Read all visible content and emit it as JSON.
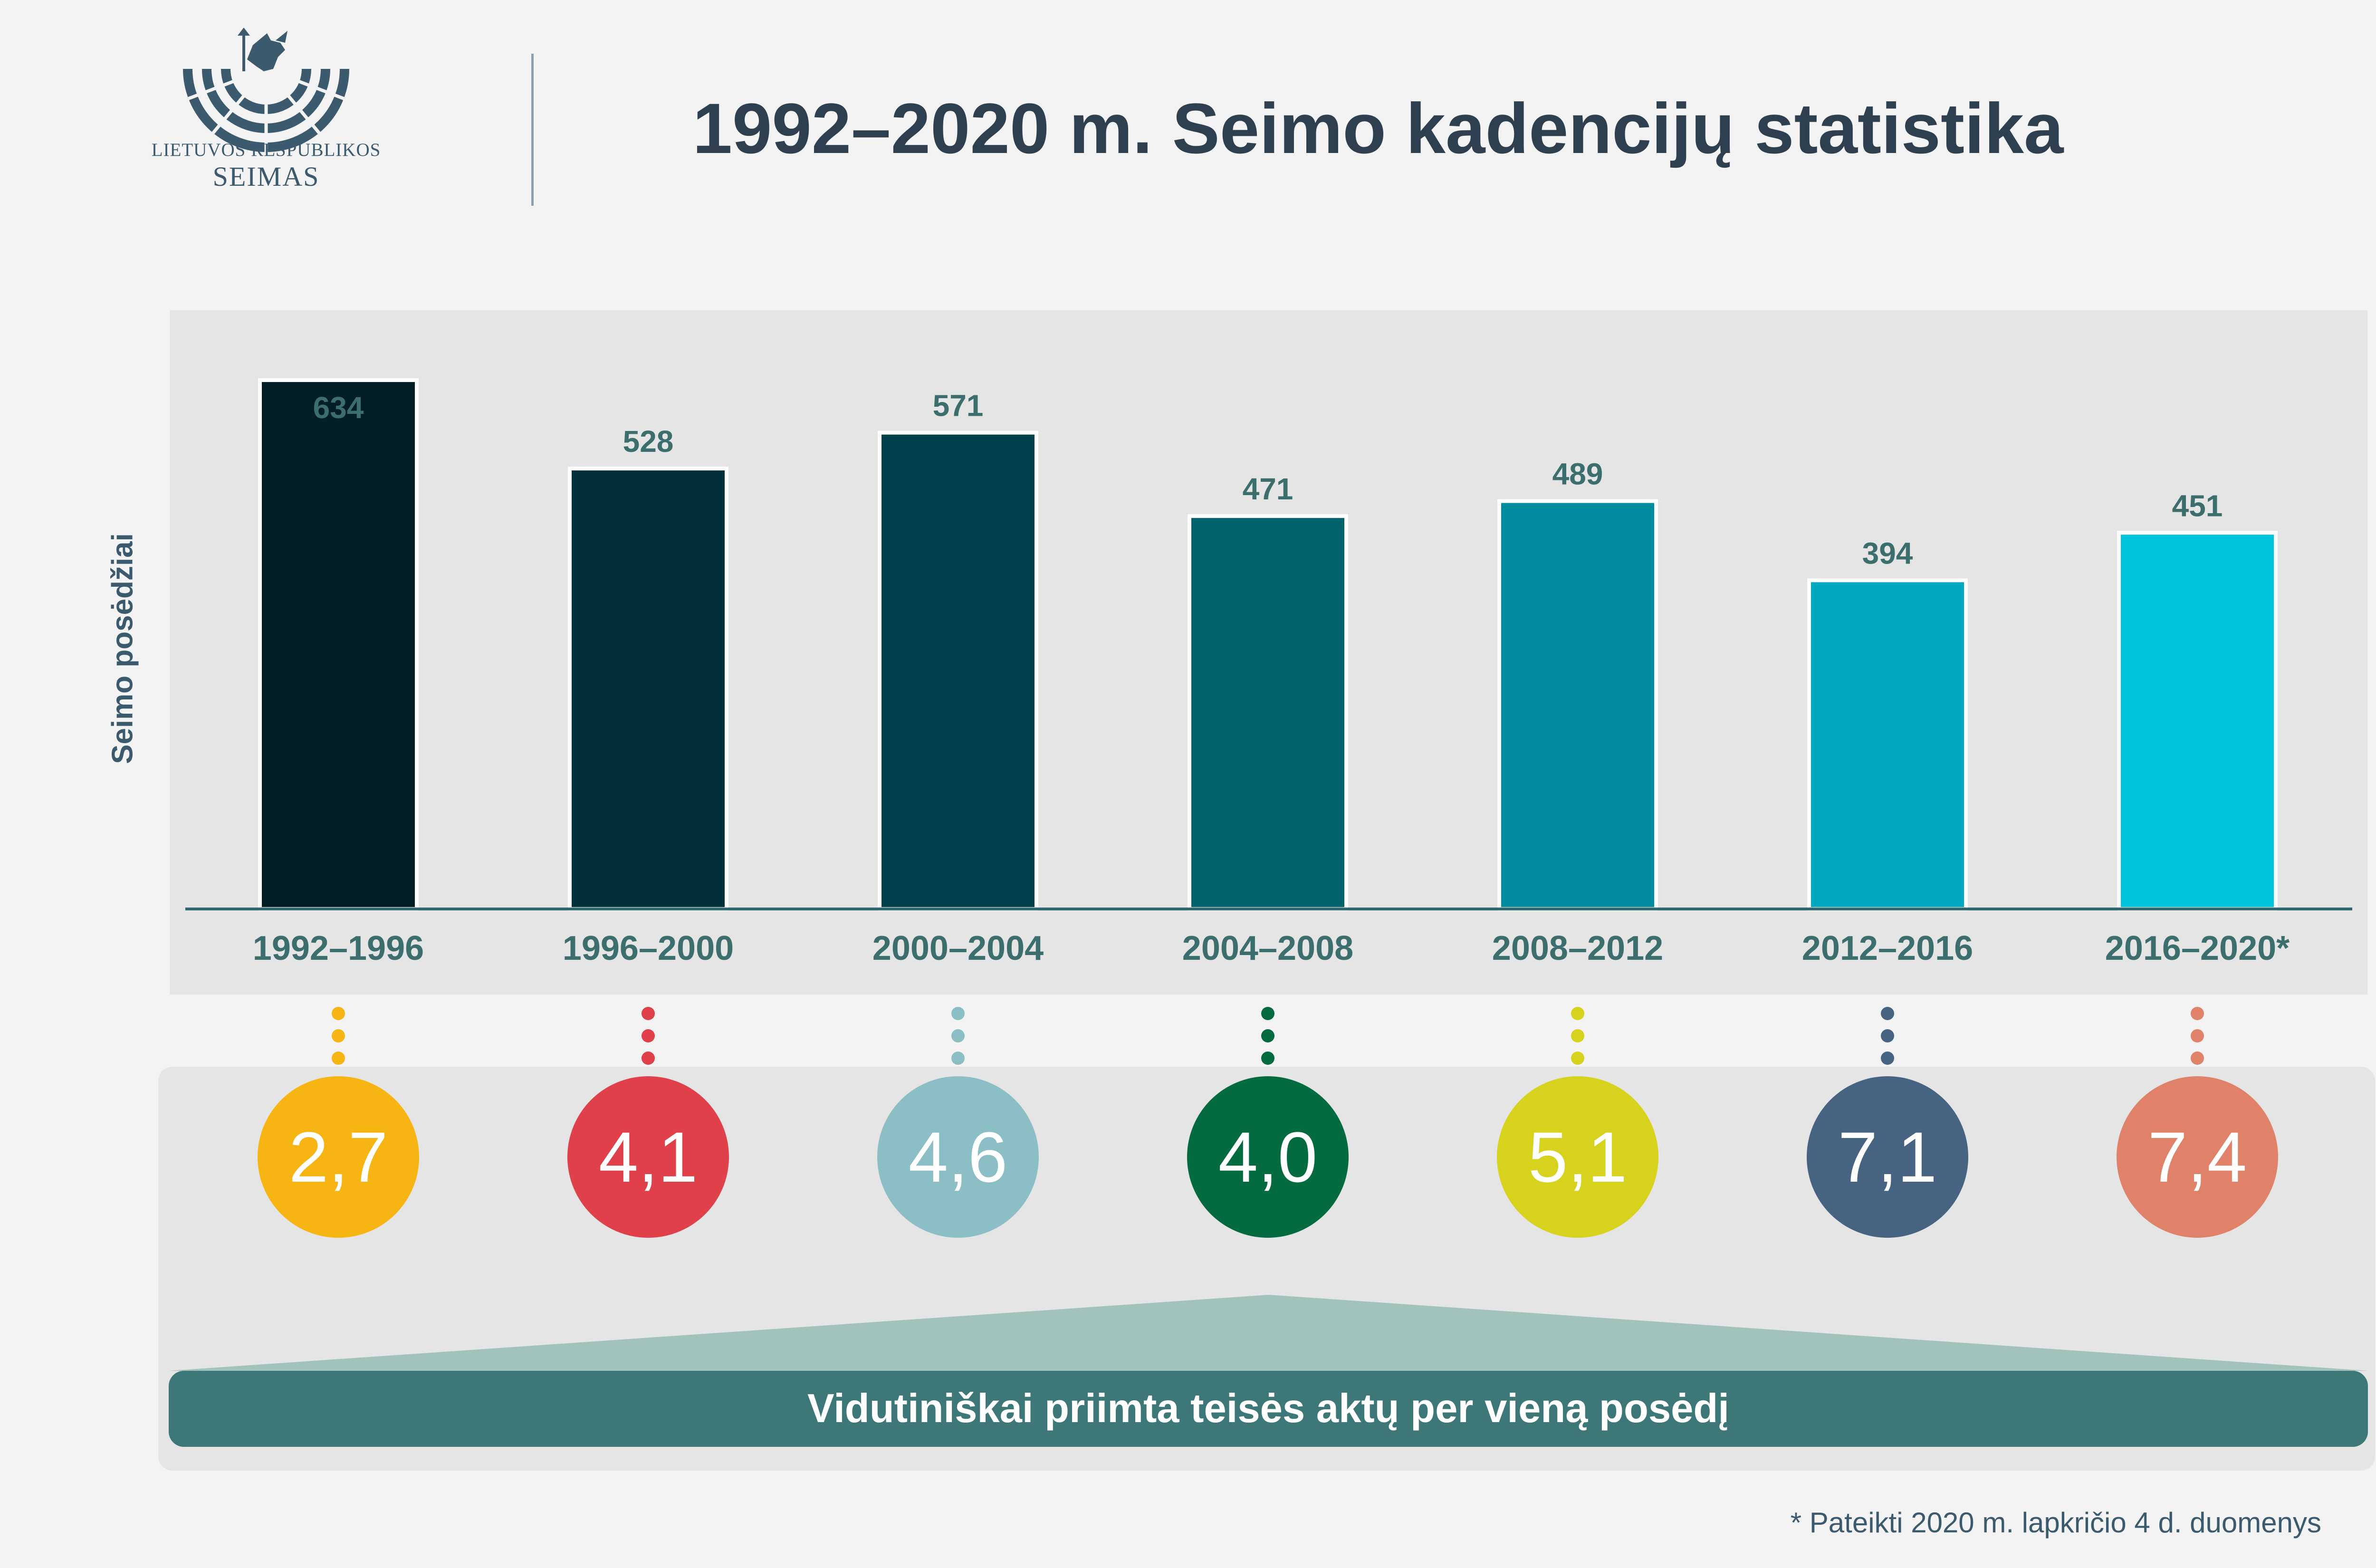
{
  "logo": {
    "line1": "LIETUVOS RESPUBLIKOS",
    "line2": "SEIMAS"
  },
  "title": "1992–2020 m. Seimo kadencijų statistika",
  "chart_data": {
    "type": "bar",
    "title": "1992–2020 m. Seimo kadencijų statistika",
    "xlabel": "",
    "ylabel": "Seimo posėdžiai",
    "ylim": [
      0,
      634
    ],
    "grid": false,
    "categories": [
      "1992–1996",
      "1996–2000",
      "2000–2004",
      "2004–2008",
      "2008–2012",
      "2012–2016",
      "2016–2020*"
    ],
    "values": [
      634,
      528,
      571,
      471,
      489,
      394,
      451
    ],
    "colors": [
      "#031e24",
      "#02303a",
      "#02414b",
      "#02626e",
      "#028c9f",
      "#00a9c0",
      "#00c3dc"
    ],
    "value_label_color": "#3c6e6e"
  },
  "averages": {
    "values": [
      "2,7",
      "4,1",
      "4,6",
      "4,0",
      "5,1",
      "7,1",
      "7,4"
    ],
    "colors": [
      "#f7b514",
      "#e0404a",
      "#8bbfc5",
      "#046a40",
      "#d6d21e",
      "#466481",
      "#e0826a"
    ],
    "banner": "Vidutiniškai priimta teisės aktų per vieną posėdį"
  },
  "footnote": "* Pateikti 2020 m. lapkričio 4 d. duomenys"
}
